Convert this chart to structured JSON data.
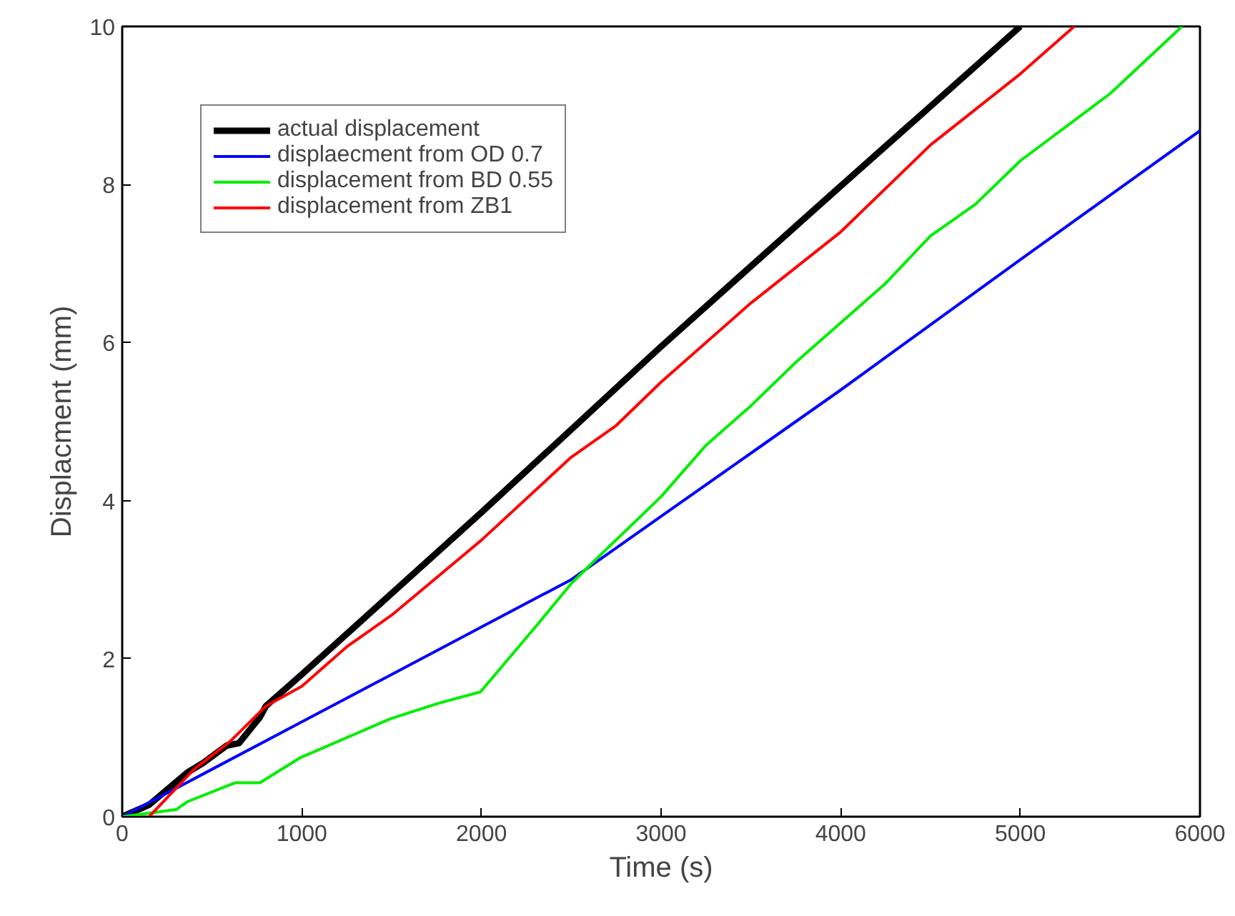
{
  "chart_data": {
    "type": "line",
    "xlabel": "Time (s)",
    "ylabel": "Displacment (mm)",
    "xlim": [
      0,
      6000
    ],
    "ylim": [
      0,
      10
    ],
    "xticks": [
      0,
      1000,
      2000,
      3000,
      4000,
      5000,
      6000
    ],
    "yticks": [
      0,
      2,
      4,
      6,
      8,
      10
    ],
    "grid": false,
    "legend": "top left",
    "marker": "none",
    "line_style": "solid",
    "series": [
      {
        "name": "actual displacement",
        "color": "#000000",
        "x": [
          0,
          150,
          363,
          450,
          582,
          650,
          767,
          800,
          1000,
          2000,
          3000,
          4000,
          5000
        ],
        "values": [
          0,
          0.15,
          0.56,
          0.68,
          0.9,
          0.93,
          1.26,
          1.4,
          1.8,
          3.85,
          5.95,
          7.98,
          10
        ]
      },
      {
        "name": "displaecment from OD 0.7",
        "color": "#0000ff",
        "x": [
          0,
          500,
          1000,
          1500,
          2000,
          2500,
          3000,
          3500,
          4000,
          5000,
          6000
        ],
        "values": [
          0,
          0.6,
          1.2,
          1.8,
          2.4,
          3.0,
          3.8,
          4.6,
          5.4,
          7.05,
          8.68
        ]
      },
      {
        "name": "displacement from BD 0.55",
        "color": "#00ee00",
        "x": [
          0,
          300,
          363,
          630,
          767,
          994,
          1494,
          1753,
          1995,
          2300,
          2500,
          2625,
          3000,
          3250,
          3500,
          3750,
          4000,
          4250,
          4500,
          4750,
          5000,
          5500,
          5900
        ],
        "values": [
          0,
          0.09,
          0.19,
          0.43,
          0.43,
          0.75,
          1.24,
          1.43,
          1.58,
          2.4,
          2.95,
          3.23,
          4.05,
          4.7,
          5.2,
          5.75,
          6.25,
          6.75,
          7.35,
          7.75,
          8.3,
          9.15,
          10
        ]
      },
      {
        "name": "displacement from ZB1",
        "color": "#ff0000",
        "x": [
          150,
          400,
          600,
          800,
          1000,
          1250,
          1500,
          2000,
          2500,
          2750,
          3000,
          3500,
          4000,
          4500,
          5000,
          5300
        ],
        "values": [
          0,
          0.6,
          0.95,
          1.4,
          1.65,
          2.15,
          2.55,
          3.5,
          4.55,
          4.95,
          5.5,
          6.5,
          7.4,
          8.5,
          9.4,
          10
        ]
      }
    ]
  }
}
